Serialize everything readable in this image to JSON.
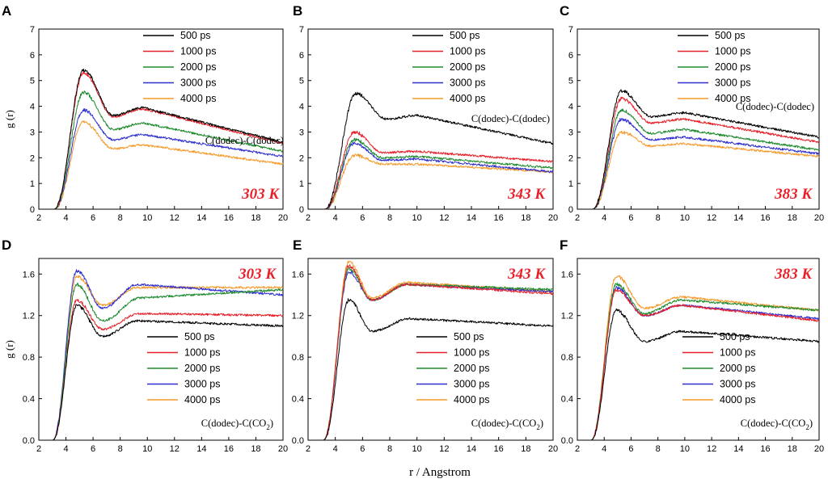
{
  "figure": {
    "x_axis_label": "r / Angstrom"
  },
  "chart_data": [
    {
      "panel": "A",
      "type": "line",
      "temperature": "303 K",
      "annotation": "C(dodec)-C(dodec)",
      "ylabel": "g (r)",
      "xlim": [
        2,
        20
      ],
      "ylim": [
        0,
        7
      ],
      "xticks": [
        "2",
        "4",
        "6",
        "8",
        "10",
        "12",
        "14",
        "16",
        "18",
        "20"
      ],
      "yticks": [
        "0",
        "1",
        "2",
        "3",
        "4",
        "5",
        "6",
        "7"
      ],
      "legend": [
        "500 ps",
        "1000 ps",
        "2000 ps",
        "3000 ps",
        "4000 ps"
      ],
      "series": [
        {
          "name": "500 ps",
          "color": "#000000",
          "onset": 3.1,
          "peak_r": 5.3,
          "peak": 5.4,
          "min_r": 7.5,
          "min": 3.65,
          "second_r": 9.7,
          "second": 3.95,
          "end": 2.6
        },
        {
          "name": "1000 ps",
          "color": "#e8202a",
          "onset": 3.1,
          "peak_r": 5.3,
          "peak": 5.3,
          "min_r": 7.5,
          "min": 3.6,
          "second_r": 9.7,
          "second": 3.9,
          "end": 2.55
        },
        {
          "name": "2000 ps",
          "color": "#1f8b2e",
          "onset": 3.1,
          "peak_r": 5.3,
          "peak": 4.55,
          "min_r": 7.5,
          "min": 3.1,
          "second_r": 9.7,
          "second": 3.35,
          "end": 2.25
        },
        {
          "name": "3000 ps",
          "color": "#2f2fd0",
          "onset": 3.1,
          "peak_r": 5.3,
          "peak": 3.85,
          "min_r": 7.5,
          "min": 2.7,
          "second_r": 9.7,
          "second": 2.9,
          "end": 2.05
        },
        {
          "name": "4000 ps",
          "color": "#f59a2a",
          "onset": 3.1,
          "peak_r": 5.3,
          "peak": 3.4,
          "min_r": 7.5,
          "min": 2.35,
          "second_r": 9.7,
          "second": 2.5,
          "end": 1.75
        }
      ]
    },
    {
      "panel": "B",
      "type": "line",
      "temperature": "343 K",
      "annotation": "C(dodec)-C(dodec)",
      "ylabel": "",
      "xlim": [
        2,
        20
      ],
      "ylim": [
        0,
        7
      ],
      "xticks": [
        "2",
        "4",
        "6",
        "8",
        "10",
        "12",
        "14",
        "16",
        "18",
        "20"
      ],
      "yticks": [
        "0",
        "1",
        "2",
        "3",
        "4",
        "5",
        "6",
        "7"
      ],
      "legend": [
        "500 ps",
        "1000 ps",
        "2000 ps",
        "3000 ps",
        "4000 ps"
      ],
      "series": [
        {
          "name": "500 ps",
          "color": "#000000",
          "onset": 3.2,
          "peak_r": 5.5,
          "peak": 4.5,
          "min_r": 7.8,
          "min": 3.5,
          "second_r": 10.0,
          "second": 3.65,
          "end": 2.55
        },
        {
          "name": "1000 ps",
          "color": "#e8202a",
          "onset": 3.2,
          "peak_r": 5.4,
          "peak": 3.0,
          "min_r": 7.5,
          "min": 2.2,
          "second_r": 10.0,
          "second": 2.25,
          "end": 1.85
        },
        {
          "name": "2000 ps",
          "color": "#1f8b2e",
          "onset": 3.2,
          "peak_r": 5.4,
          "peak": 2.7,
          "min_r": 7.5,
          "min": 2.0,
          "second_r": 10.0,
          "second": 2.05,
          "end": 1.6
        },
        {
          "name": "3000 ps",
          "color": "#2f2fd0",
          "onset": 3.2,
          "peak_r": 5.4,
          "peak": 2.55,
          "min_r": 7.5,
          "min": 1.9,
          "second_r": 10.0,
          "second": 1.95,
          "end": 1.45
        },
        {
          "name": "4000 ps",
          "color": "#f59a2a",
          "onset": 3.2,
          "peak_r": 5.4,
          "peak": 2.1,
          "min_r": 7.5,
          "min": 1.75,
          "second_r": 10.0,
          "second": 1.75,
          "end": 1.45
        }
      ]
    },
    {
      "panel": "C",
      "type": "line",
      "temperature": "383 K",
      "annotation": "C(dodec)-C(dodec)",
      "ylabel": "",
      "xlim": [
        2,
        20
      ],
      "ylim": [
        0,
        7
      ],
      "xticks": [
        "2",
        "4",
        "6",
        "8",
        "10",
        "12",
        "14",
        "16",
        "18",
        "20"
      ],
      "yticks": [
        "0",
        "1",
        "2",
        "3",
        "4",
        "5",
        "6",
        "7"
      ],
      "legend": [
        "500 ps",
        "1000 ps",
        "2000 ps",
        "3000 ps",
        "4000 ps"
      ],
      "series": [
        {
          "name": "500 ps",
          "color": "#000000",
          "onset": 3.1,
          "peak_r": 5.3,
          "peak": 4.6,
          "min_r": 7.5,
          "min": 3.6,
          "second_r": 10.0,
          "second": 3.75,
          "end": 2.8
        },
        {
          "name": "1000 ps",
          "color": "#e8202a",
          "onset": 3.1,
          "peak_r": 5.3,
          "peak": 4.3,
          "min_r": 7.5,
          "min": 3.35,
          "second_r": 10.0,
          "second": 3.5,
          "end": 2.6
        },
        {
          "name": "2000 ps",
          "color": "#1f8b2e",
          "onset": 3.1,
          "peak_r": 5.3,
          "peak": 3.85,
          "min_r": 7.5,
          "min": 2.95,
          "second_r": 10.0,
          "second": 3.1,
          "end": 2.3
        },
        {
          "name": "3000 ps",
          "color": "#2f2fd0",
          "onset": 3.1,
          "peak_r": 5.3,
          "peak": 3.5,
          "min_r": 7.5,
          "min": 2.7,
          "second_r": 10.0,
          "second": 2.8,
          "end": 2.15
        },
        {
          "name": "4000 ps",
          "color": "#f59a2a",
          "onset": 3.1,
          "peak_r": 5.3,
          "peak": 3.0,
          "min_r": 7.5,
          "min": 2.45,
          "second_r": 10.0,
          "second": 2.55,
          "end": 2.05
        }
      ]
    },
    {
      "panel": "D",
      "type": "line",
      "temperature": "303 K",
      "annotation": "C(dodec)-C(CO2)",
      "ylabel": "g (r)",
      "xlim": [
        2,
        20
      ],
      "ylim": [
        0,
        1.75
      ],
      "xticks": [
        "2",
        "4",
        "6",
        "8",
        "10",
        "12",
        "14",
        "16",
        "18",
        "20"
      ],
      "yticks": [
        "0.0",
        "0.4",
        "0.8",
        "1.2",
        "1.6"
      ],
      "legend": [
        "500 ps",
        "1000 ps",
        "2000 ps",
        "3000 ps",
        "4000 ps"
      ],
      "series": [
        {
          "name": "500 ps",
          "color": "#000000",
          "onset": 3.0,
          "peak_r": 4.8,
          "peak": 1.3,
          "min_r": 6.7,
          "min": 1.0,
          "second_r": 9.3,
          "second": 1.15,
          "end": 1.1
        },
        {
          "name": "1000 ps",
          "color": "#e8202a",
          "onset": 3.0,
          "peak_r": 4.8,
          "peak": 1.35,
          "min_r": 6.7,
          "min": 1.07,
          "second_r": 9.5,
          "second": 1.22,
          "end": 1.2
        },
        {
          "name": "2000 ps",
          "color": "#1f8b2e",
          "onset": 3.0,
          "peak_r": 4.8,
          "peak": 1.5,
          "min_r": 6.7,
          "min": 1.15,
          "second_r": 9.5,
          "second": 1.37,
          "end": 1.45
        },
        {
          "name": "3000 ps",
          "color": "#2f2fd0",
          "onset": 3.0,
          "peak_r": 4.8,
          "peak": 1.63,
          "min_r": 6.7,
          "min": 1.27,
          "second_r": 9.3,
          "second": 1.5,
          "end": 1.4
        },
        {
          "name": "4000 ps",
          "color": "#f59a2a",
          "onset": 3.0,
          "peak_r": 4.8,
          "peak": 1.58,
          "min_r": 6.7,
          "min": 1.3,
          "second_r": 9.3,
          "second": 1.47,
          "end": 1.47
        }
      ]
    },
    {
      "panel": "E",
      "type": "line",
      "temperature": "343 K",
      "annotation": "C(dodec)-C(CO2)",
      "ylabel": "",
      "xlim": [
        2,
        20
      ],
      "ylim": [
        0,
        1.75
      ],
      "xticks": [
        "2",
        "4",
        "6",
        "8",
        "10",
        "12",
        "14",
        "16",
        "18",
        "20"
      ],
      "yticks": [
        "0.0",
        "0.4",
        "0.8",
        "1.2",
        "1.6"
      ],
      "legend": [
        "500 ps",
        "1000 ps",
        "2000 ps",
        "3000 ps",
        "4000 ps"
      ],
      "series": [
        {
          "name": "500 ps",
          "color": "#000000",
          "onset": 3.1,
          "peak_r": 5.0,
          "peak": 1.35,
          "min_r": 6.7,
          "min": 1.05,
          "second_r": 9.5,
          "second": 1.17,
          "end": 1.1
        },
        {
          "name": "1000 ps",
          "color": "#e8202a",
          "onset": 3.1,
          "peak_r": 5.0,
          "peak": 1.68,
          "min_r": 6.7,
          "min": 1.35,
          "second_r": 9.3,
          "second": 1.5,
          "end": 1.41
        },
        {
          "name": "2000 ps",
          "color": "#1f8b2e",
          "onset": 3.1,
          "peak_r": 5.0,
          "peak": 1.65,
          "min_r": 6.7,
          "min": 1.35,
          "second_r": 9.3,
          "second": 1.5,
          "end": 1.45
        },
        {
          "name": "3000 ps",
          "color": "#2f2fd0",
          "onset": 3.1,
          "peak_r": 5.0,
          "peak": 1.62,
          "min_r": 6.7,
          "min": 1.35,
          "second_r": 9.3,
          "second": 1.5,
          "end": 1.43
        },
        {
          "name": "4000 ps",
          "color": "#f59a2a",
          "onset": 3.1,
          "peak_r": 5.0,
          "peak": 1.72,
          "min_r": 6.7,
          "min": 1.37,
          "second_r": 9.3,
          "second": 1.52,
          "end": 1.43
        }
      ]
    },
    {
      "panel": "F",
      "type": "line",
      "temperature": "383 K",
      "annotation": "C(dodec)-C(CO2)",
      "ylabel": "",
      "xlim": [
        2,
        20
      ],
      "ylim": [
        0,
        1.75
      ],
      "xticks": [
        "2",
        "4",
        "6",
        "8",
        "10",
        "12",
        "14",
        "16",
        "18",
        "20"
      ],
      "yticks": [
        "0.0",
        "0.4",
        "0.8",
        "1.2",
        "1.6"
      ],
      "legend": [
        "500 ps",
        "1000 ps",
        "2000 ps",
        "3000 ps",
        "4000 ps"
      ],
      "series": [
        {
          "name": "500 ps",
          "color": "#000000",
          "onset": 3.0,
          "peak_r": 4.9,
          "peak": 1.25,
          "min_r": 7.0,
          "min": 0.95,
          "second_r": 9.8,
          "second": 1.05,
          "end": 0.95
        },
        {
          "name": "1000 ps",
          "color": "#e8202a",
          "onset": 3.0,
          "peak_r": 4.9,
          "peak": 1.45,
          "min_r": 7.0,
          "min": 1.2,
          "second_r": 9.8,
          "second": 1.3,
          "end": 1.15
        },
        {
          "name": "2000 ps",
          "color": "#1f8b2e",
          "onset": 3.0,
          "peak_r": 4.9,
          "peak": 1.5,
          "min_r": 7.0,
          "min": 1.22,
          "second_r": 9.8,
          "second": 1.35,
          "end": 1.25
        },
        {
          "name": "3000 ps",
          "color": "#2f2fd0",
          "onset": 3.0,
          "peak_r": 4.9,
          "peak": 1.47,
          "min_r": 7.0,
          "min": 1.2,
          "second_r": 9.8,
          "second": 1.3,
          "end": 1.17
        },
        {
          "name": "4000 ps",
          "color": "#f59a2a",
          "onset": 3.0,
          "peak_r": 4.9,
          "peak": 1.58,
          "min_r": 7.0,
          "min": 1.27,
          "second_r": 9.8,
          "second": 1.38,
          "end": 1.25
        }
      ]
    }
  ]
}
